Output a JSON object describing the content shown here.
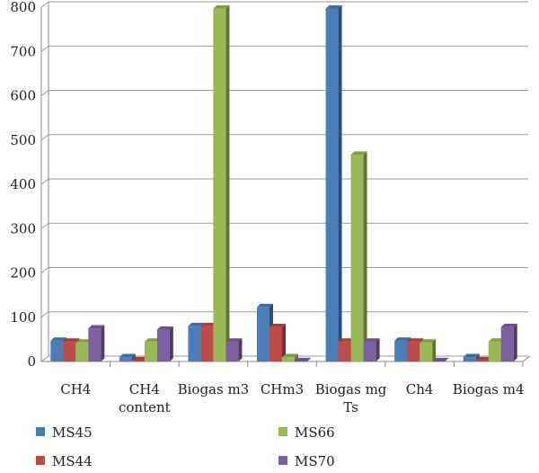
{
  "chart_data": {
    "type": "bar",
    "categories": [
      [
        "CH4"
      ],
      [
        "CH4",
        "content"
      ],
      [
        "Biogas m3"
      ],
      [
        "CHm3"
      ],
      [
        "Biogas mg",
        "Ts"
      ],
      [
        "Ch4"
      ],
      [
        "Biogas m4"
      ]
    ],
    "series": [
      {
        "name": "MS45",
        "values": [
          47,
          10,
          80,
          123,
          797,
          47,
          10
        ],
        "color": "#4a7ebb"
      },
      {
        "name": "MS44",
        "values": [
          45,
          3,
          80,
          78,
          45,
          45,
          3
        ],
        "color": "#be4b48"
      },
      {
        "name": "MS66",
        "values": [
          43,
          45,
          797,
          10,
          467,
          43,
          45
        ],
        "color": "#98b954"
      },
      {
        "name": "MS70",
        "values": [
          75,
          72,
          45,
          1,
          45,
          1,
          78
        ],
        "color": "#7d60a0"
      }
    ],
    "ylim": [
      0,
      800
    ],
    "yticks": [
      "0",
      "100",
      "200",
      "300",
      "400",
      "500",
      "600",
      "700",
      "800"
    ],
    "grid": true,
    "legend_position": "bottom"
  }
}
